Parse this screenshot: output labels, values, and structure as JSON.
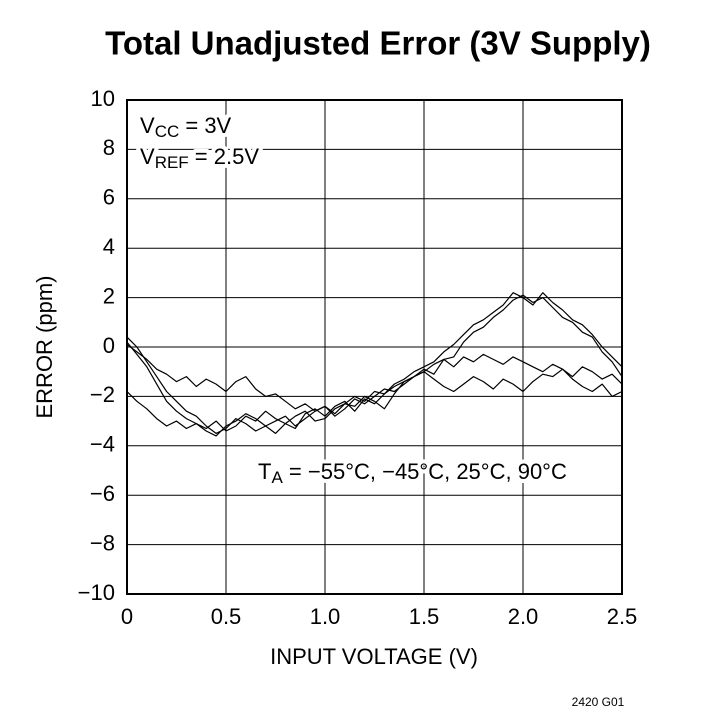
{
  "chart_data": {
    "type": "line",
    "title": "Total Unadjusted Error (3V Supply)",
    "xlabel": "INPUT VOLTAGE (V)",
    "ylabel": "ERROR (ppm)",
    "footnote": "2420 G01",
    "annotations": [
      {
        "text": "V",
        "sub": "CC",
        "rest": " = 3V"
      },
      {
        "text": "V",
        "sub": "REF",
        "rest": " = 2.5V"
      },
      {
        "text": "T",
        "sub": "A",
        "rest": " = −55°C, −45°C, 25°C, 90°C"
      }
    ],
    "x": [
      0,
      0.05,
      0.1,
      0.15,
      0.2,
      0.25,
      0.3,
      0.35,
      0.4,
      0.45,
      0.5,
      0.55,
      0.6,
      0.65,
      0.7,
      0.75,
      0.8,
      0.85,
      0.9,
      0.95,
      1.0,
      1.05,
      1.1,
      1.15,
      1.2,
      1.25,
      1.3,
      1.35,
      1.4,
      1.45,
      1.5,
      1.55,
      1.6,
      1.65,
      1.7,
      1.75,
      1.8,
      1.85,
      1.9,
      1.95,
      2.0,
      2.05,
      2.1,
      2.15,
      2.2,
      2.25,
      2.3,
      2.35,
      2.4,
      2.45,
      2.5
    ],
    "series": [
      {
        "color": "#000000",
        "values": [
          0.2,
          -0.3,
          -0.8,
          -1.5,
          -2.2,
          -2.6,
          -2.9,
          -3.1,
          -3.3,
          -3.0,
          -3.4,
          -3.2,
          -2.8,
          -3.0,
          -2.6,
          -2.9,
          -3.1,
          -3.3,
          -2.7,
          -2.5,
          -2.8,
          -2.4,
          -2.2,
          -2.6,
          -2.1,
          -2.3,
          -1.9,
          -1.6,
          -1.4,
          -1.2,
          -0.9,
          -1.1,
          -0.5,
          -0.4,
          0.2,
          0.6,
          0.8,
          1.2,
          1.5,
          1.9,
          2.1,
          1.8,
          2.0,
          1.6,
          1.2,
          1.0,
          0.6,
          0.4,
          -0.2,
          -0.6,
          -1.2
        ]
      },
      {
        "color": "#000000",
        "values": [
          0.4,
          0.0,
          -0.6,
          -1.2,
          -1.8,
          -2.2,
          -2.6,
          -2.8,
          -3.2,
          -3.5,
          -3.3,
          -2.9,
          -3.1,
          -3.4,
          -3.2,
          -3.0,
          -2.8,
          -3.2,
          -2.9,
          -2.6,
          -2.4,
          -2.7,
          -2.3,
          -2.0,
          -2.2,
          -1.8,
          -1.9,
          -1.5,
          -1.3,
          -1.0,
          -0.8,
          -0.6,
          -0.2,
          0.1,
          0.5,
          0.9,
          1.1,
          1.4,
          1.7,
          2.2,
          2.0,
          1.7,
          2.2,
          1.8,
          1.5,
          1.1,
          0.9,
          0.5,
          0.0,
          -0.4,
          -0.8
        ]
      },
      {
        "color": "#000000",
        "values": [
          -1.8,
          -2.2,
          -2.5,
          -2.9,
          -3.2,
          -3.0,
          -3.3,
          -3.1,
          -3.4,
          -3.6,
          -3.2,
          -3.0,
          -2.7,
          -2.9,
          -3.2,
          -3.5,
          -3.1,
          -2.8,
          -2.6,
          -3.0,
          -2.9,
          -2.5,
          -2.3,
          -2.4,
          -2.0,
          -2.2,
          -2.5,
          -1.9,
          -1.4,
          -1.2,
          -1.0,
          -1.3,
          -1.6,
          -1.8,
          -1.5,
          -1.2,
          -1.4,
          -1.7,
          -1.3,
          -1.5,
          -1.8,
          -1.4,
          -1.1,
          -1.2,
          -0.9,
          -1.3,
          -1.6,
          -1.8,
          -1.5,
          -2.0,
          -1.8
        ]
      },
      {
        "color": "#000000",
        "values": [
          0.1,
          -0.2,
          -0.5,
          -0.9,
          -1.1,
          -1.4,
          -1.2,
          -1.6,
          -1.3,
          -1.5,
          -1.8,
          -1.4,
          -1.2,
          -1.7,
          -2.0,
          -1.9,
          -2.2,
          -2.5,
          -2.3,
          -2.6,
          -2.4,
          -2.8,
          -2.5,
          -2.1,
          -2.3,
          -2.0,
          -1.7,
          -1.8,
          -1.5,
          -1.2,
          -1.0,
          -0.7,
          -0.5,
          -0.8,
          -0.4,
          -0.6,
          -0.3,
          -0.5,
          -0.7,
          -0.4,
          -0.6,
          -0.8,
          -1.0,
          -0.7,
          -0.9,
          -1.2,
          -0.8,
          -1.0,
          -1.3,
          -1.1,
          -1.5
        ]
      }
    ],
    "xlim": [
      0,
      2.5
    ],
    "xticks": [
      0,
      0.5,
      {
        "value": 1,
        "label": "1.0"
      },
      1.5,
      {
        "value": 2,
        "label": "2.0"
      },
      2.5
    ],
    "ylim": [
      -10,
      10
    ],
    "yticks": [
      10,
      8,
      6,
      4,
      2,
      0,
      {
        "value": -2,
        "label": "−2"
      },
      {
        "value": -4,
        "label": "−4"
      },
      {
        "value": -6,
        "label": "−6"
      },
      {
        "value": -8,
        "label": "−8"
      },
      {
        "value": -10,
        "label": "−10"
      }
    ],
    "grid": true
  }
}
